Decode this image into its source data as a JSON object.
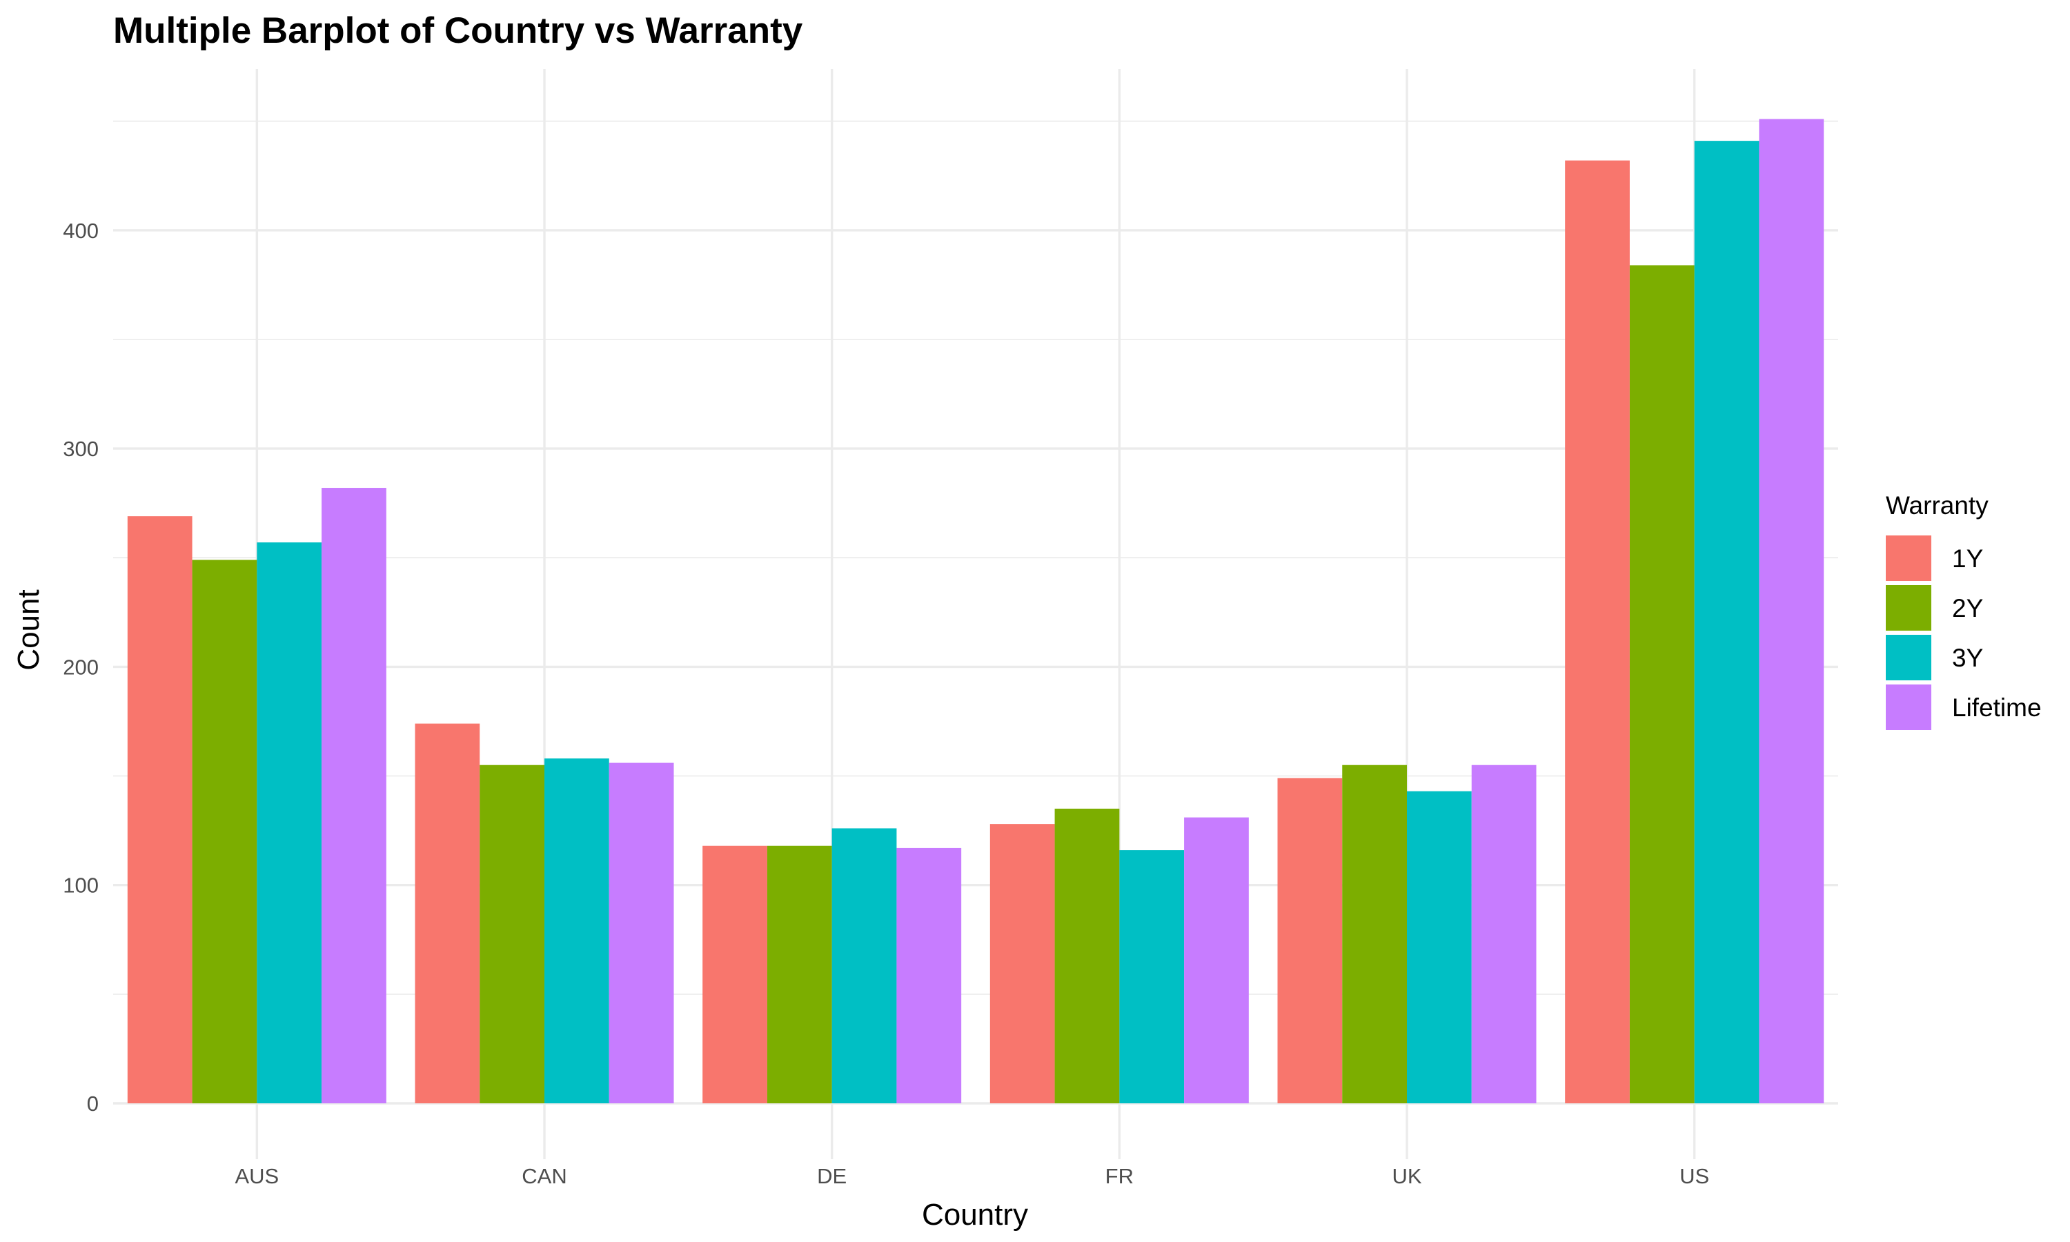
{
  "chart_data": {
    "type": "bar",
    "title": "Multiple Barplot of Country vs Warranty",
    "xlabel": "Country",
    "ylabel": "Count",
    "categories": [
      "AUS",
      "CAN",
      "DE",
      "FR",
      "UK",
      "US"
    ],
    "series": [
      {
        "name": "1Y",
        "color": "#F8766D",
        "values": [
          269,
          174,
          118,
          128,
          149,
          432
        ]
      },
      {
        "name": "2Y",
        "color": "#7CAE00",
        "values": [
          249,
          155,
          118,
          135,
          155,
          384
        ]
      },
      {
        "name": "3Y",
        "color": "#00BFC4",
        "values": [
          257,
          158,
          126,
          116,
          143,
          441
        ]
      },
      {
        "name": "Lifetime",
        "color": "#C77CFF",
        "values": [
          282,
          156,
          117,
          131,
          155,
          451
        ]
      }
    ],
    "ylim": [
      0,
      460
    ],
    "yticks": [
      0,
      100,
      200,
      300,
      400
    ],
    "grid": true,
    "legend": {
      "title": "Warranty",
      "position": "right"
    }
  }
}
